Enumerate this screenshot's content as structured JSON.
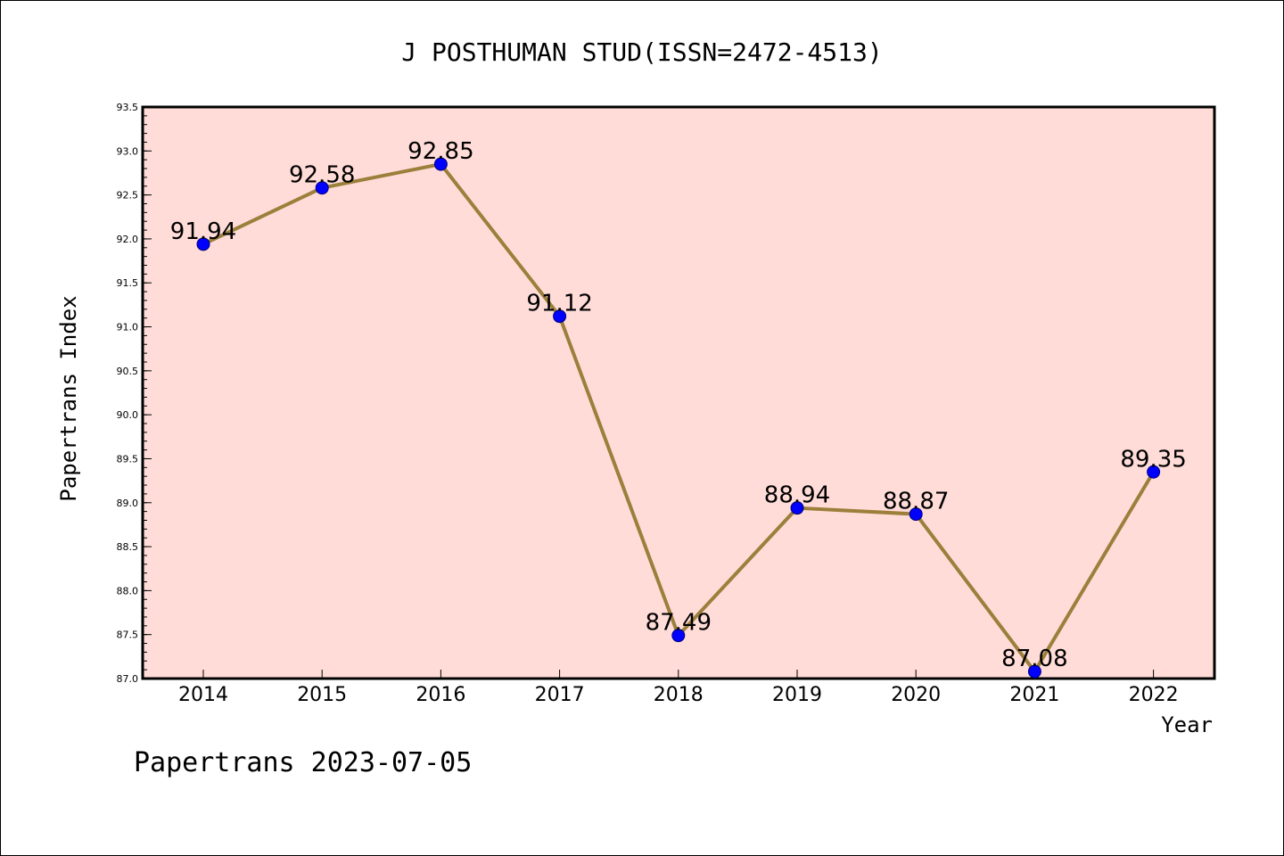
{
  "chart_data": {
    "type": "line",
    "title": "J POSTHUMAN STUD(ISSN=2472-4513)",
    "xlabel": "Year",
    "ylabel": "Papertrans Index",
    "categories": [
      "2014",
      "2015",
      "2016",
      "2017",
      "2018",
      "2019",
      "2020",
      "2021",
      "2022"
    ],
    "values": [
      91.94,
      92.58,
      92.85,
      91.12,
      87.49,
      88.94,
      88.87,
      87.08,
      89.35
    ],
    "data_labels": [
      "91.94",
      "92.58",
      "92.85",
      "91.12",
      "87.49",
      "88.94",
      "88.87",
      "87.08",
      "89.35"
    ],
    "ylim": [
      87.0,
      93.5
    ],
    "yticks": [
      "87.0",
      "87.5",
      "88.0",
      "88.5",
      "89.0",
      "89.5",
      "90.0",
      "90.5",
      "91.0",
      "91.5",
      "92.0",
      "92.5",
      "93.0",
      "93.5"
    ],
    "grid": false,
    "legend": "none",
    "colors": {
      "plot_background": "#ffdcd8",
      "line": "#9b7f3b",
      "marker": "#0000ff",
      "axis": "#000000"
    }
  },
  "footer": "Papertrans 2023-07-05"
}
